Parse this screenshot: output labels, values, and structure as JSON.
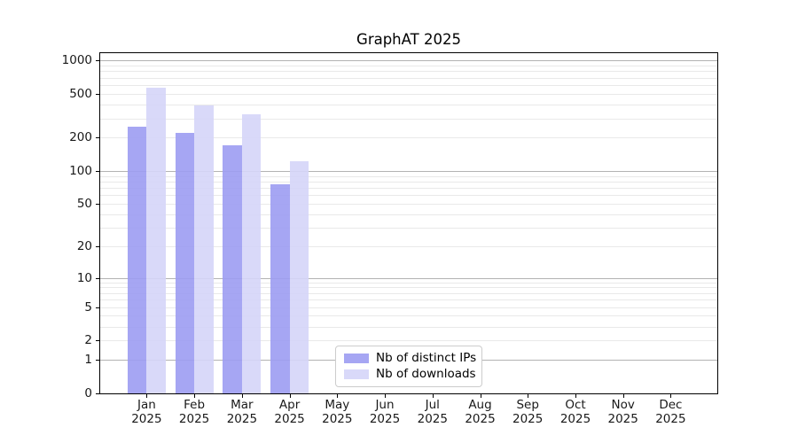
{
  "chart_data": {
    "type": "bar",
    "title": "GraphAT 2025",
    "categories": [
      "Jan",
      "Feb",
      "Mar",
      "Apr",
      "May",
      "Jun",
      "Jul",
      "Aug",
      "Sep",
      "Oct",
      "Nov",
      "Dec"
    ],
    "category_sublabel": "2025",
    "series": [
      {
        "name": "Nb of distinct IPs",
        "color": "#a6a6f3",
        "values": [
          250,
          220,
          170,
          75,
          null,
          null,
          null,
          null,
          null,
          null,
          null,
          null
        ]
      },
      {
        "name": "Nb of downloads",
        "color": "#d9d9f9",
        "values": [
          570,
          390,
          325,
          123,
          null,
          null,
          null,
          null,
          null,
          null,
          null,
          null
        ]
      }
    ],
    "yscale": "log1p",
    "ylim": [
      0,
      1160
    ],
    "yticks": [
      0,
      1,
      2,
      5,
      10,
      20,
      50,
      100,
      200,
      500,
      1000
    ],
    "grid": {
      "which": "both",
      "major_at": [
        1,
        10,
        100,
        1000
      ],
      "minor_decades": [
        1,
        10,
        100
      ],
      "major_color": "#b3b3b3",
      "minor_color": "#e9e9e9"
    },
    "legend": {
      "position": "lower-center",
      "border_color": "#cccccc",
      "background": "#ffffff"
    },
    "axes": {
      "spine_color": "#000000",
      "tick_label_color": "#191919"
    }
  }
}
